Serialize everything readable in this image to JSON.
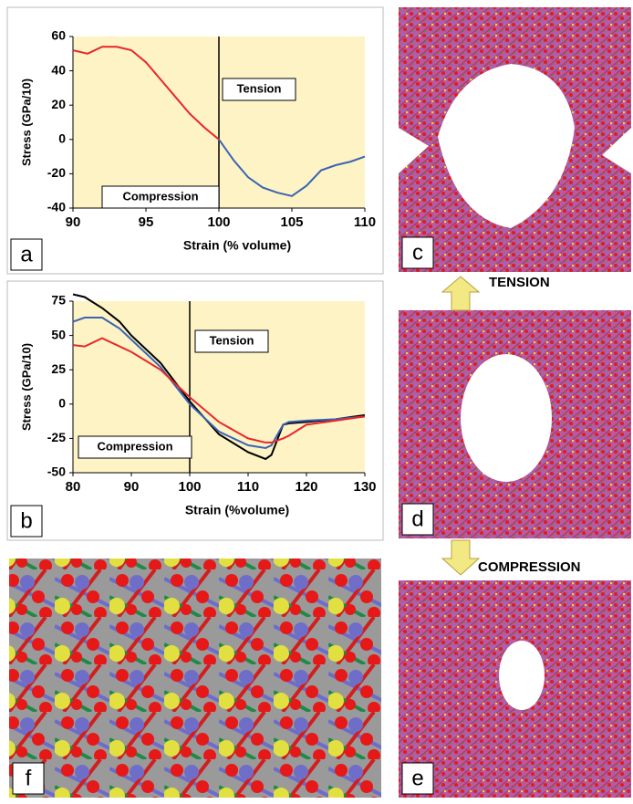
{
  "chart_data": [
    {
      "type": "line",
      "panel_label": "a",
      "xlabel": "Strain (% volume)",
      "ylabel": "Stress (GPa/10)",
      "x": [
        90,
        91,
        92,
        93,
        94,
        95,
        96,
        97,
        98,
        99,
        100,
        101,
        102,
        103,
        104,
        105,
        106,
        107,
        108,
        109,
        110
      ],
      "series": [
        {
          "color": "#e8262b",
          "values": [
            52,
            50,
            54,
            54,
            52,
            45,
            35,
            25,
            15,
            7,
            0,
            null,
            null,
            null,
            null,
            null,
            null,
            null,
            null,
            null,
            null
          ]
        },
        {
          "color": "#3a64b4",
          "values": [
            null,
            null,
            null,
            null,
            null,
            null,
            null,
            null,
            null,
            null,
            0,
            -12,
            -22,
            -28,
            -31,
            -33,
            -27,
            -18,
            -15,
            -13,
            -10
          ]
        }
      ],
      "xlim": [
        90,
        110
      ],
      "xticks": [
        90,
        95,
        100,
        105,
        110
      ],
      "ylim": [
        -40,
        60
      ],
      "yticks": [
        -40,
        -20,
        0,
        20,
        40,
        60
      ],
      "divider_x": 100,
      "annotations": [
        "Tension",
        "Compression"
      ],
      "background": "#fdf3c4"
    },
    {
      "type": "line",
      "panel_label": "b",
      "xlabel": "Strain (%volume)",
      "ylabel": "Stress (GPa/10)",
      "x": [
        80,
        82,
        85,
        88,
        90,
        95,
        100,
        105,
        110,
        113,
        114,
        116,
        117,
        120,
        125,
        130
      ],
      "series": [
        {
          "color": "#000000",
          "values": [
            80,
            78,
            70,
            60,
            50,
            30,
            2,
            -22,
            -35,
            -40,
            -37,
            -15,
            -14,
            -13,
            -11,
            -8
          ]
        },
        {
          "color": "#3a64b4",
          "values": [
            60,
            63,
            63,
            55,
            47,
            27,
            0,
            -20,
            -30,
            -32,
            -30,
            -15,
            -13,
            -12,
            -11,
            -9
          ]
        },
        {
          "color": "#e8262b",
          "values": [
            43,
            42,
            48,
            42,
            38,
            25,
            5,
            -13,
            -25,
            -28,
            -28,
            -25,
            -23,
            -15,
            -12,
            -9
          ]
        }
      ],
      "xlim": [
        80,
        130
      ],
      "xticks": [
        80,
        90,
        100,
        110,
        120,
        130
      ],
      "ylim": [
        -50,
        75
      ],
      "yticks": [
        -50,
        -25,
        0,
        25,
        50,
        75
      ],
      "divider_x": 100,
      "annotations": [
        "Tension",
        "Compression"
      ],
      "background": "#fdf3c4"
    }
  ],
  "panels": [
    "c",
    "d",
    "e",
    "f"
  ],
  "arrows": [
    "TENSION",
    "COMPRESSION"
  ]
}
